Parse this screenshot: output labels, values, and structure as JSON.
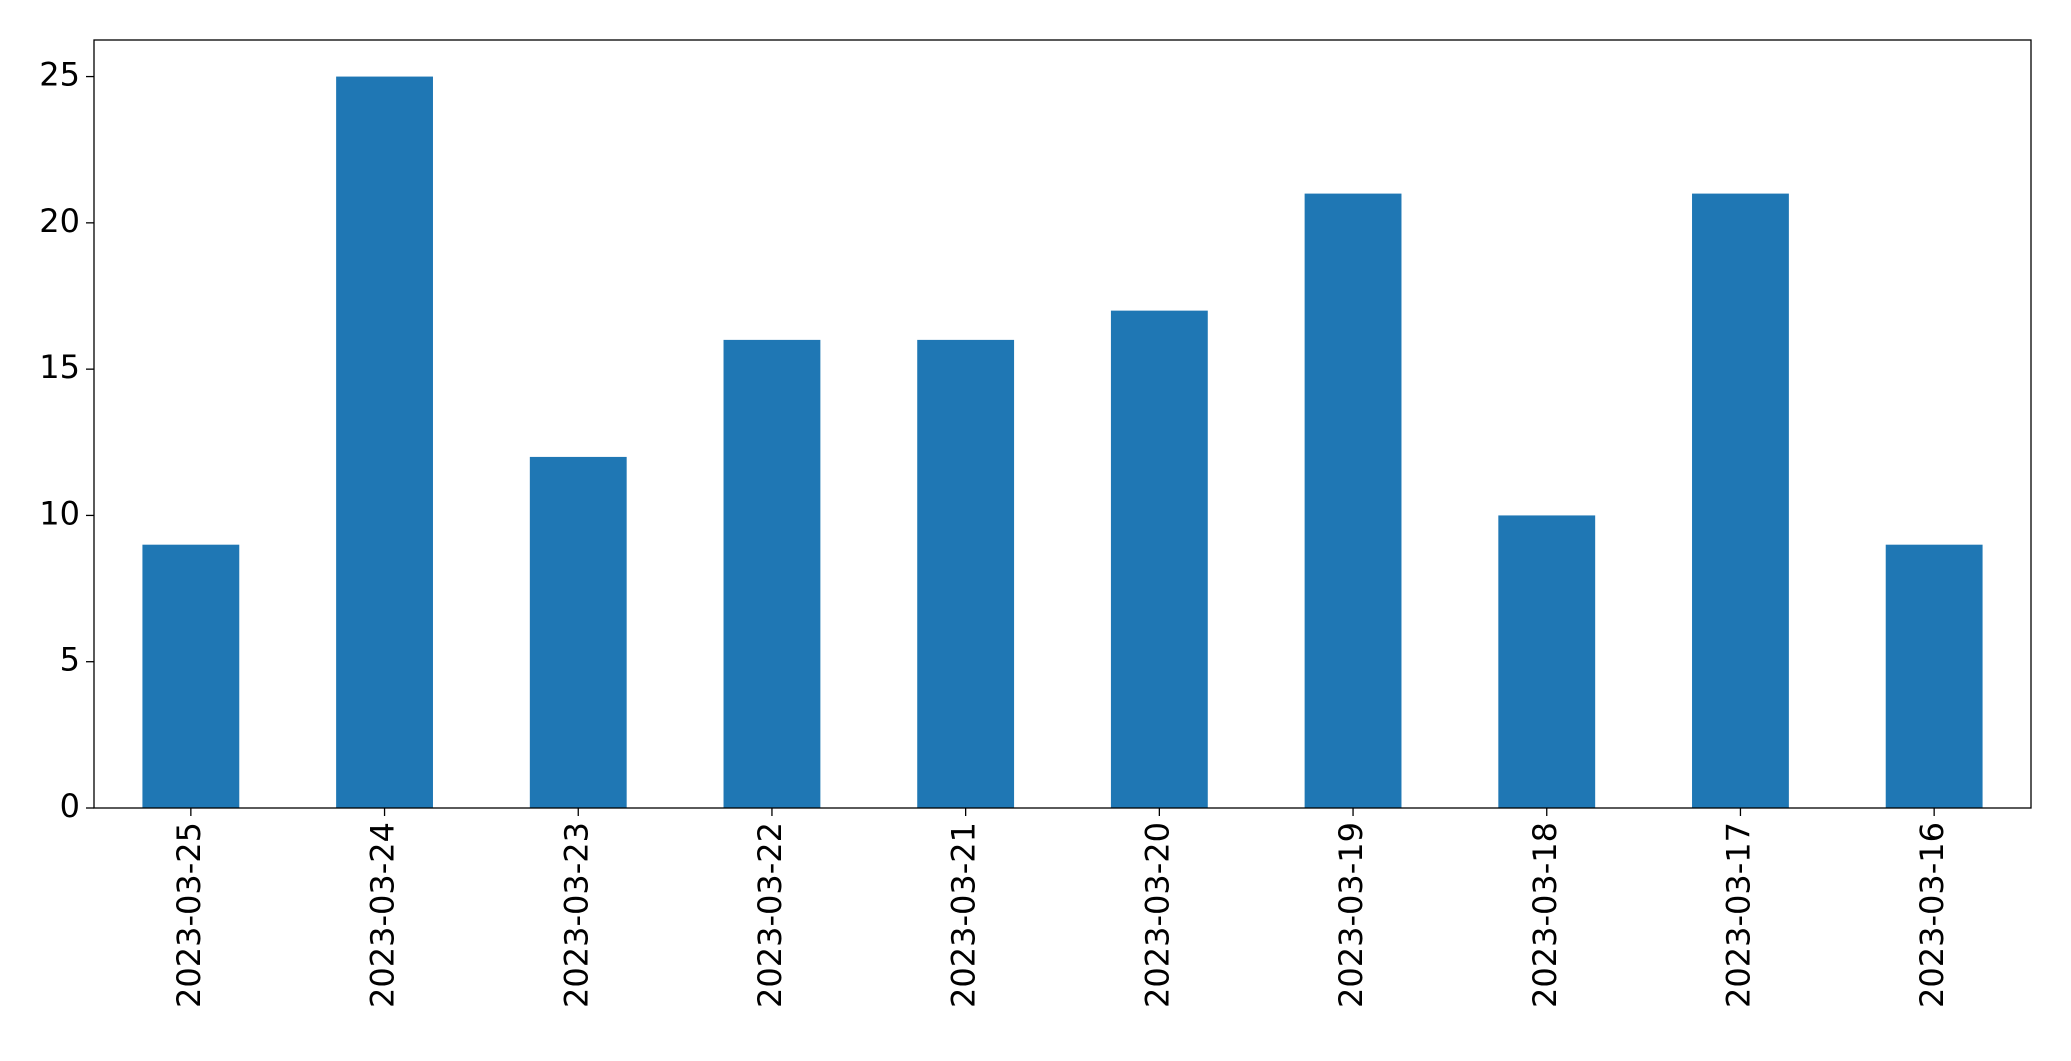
{
  "chart_data": {
    "type": "bar",
    "categories": [
      "2023-03-25",
      "2023-03-24",
      "2023-03-23",
      "2023-03-22",
      "2023-03-21",
      "2023-03-20",
      "2023-03-19",
      "2023-03-18",
      "2023-03-17",
      "2023-03-16"
    ],
    "values": [
      9,
      25,
      12,
      16,
      16,
      17,
      21,
      10,
      21,
      9
    ],
    "color": "#1f77b4",
    "ylim": [
      0,
      26.25
    ],
    "yticks": [
      0,
      5,
      10,
      15,
      20,
      25
    ],
    "grid": false
  }
}
